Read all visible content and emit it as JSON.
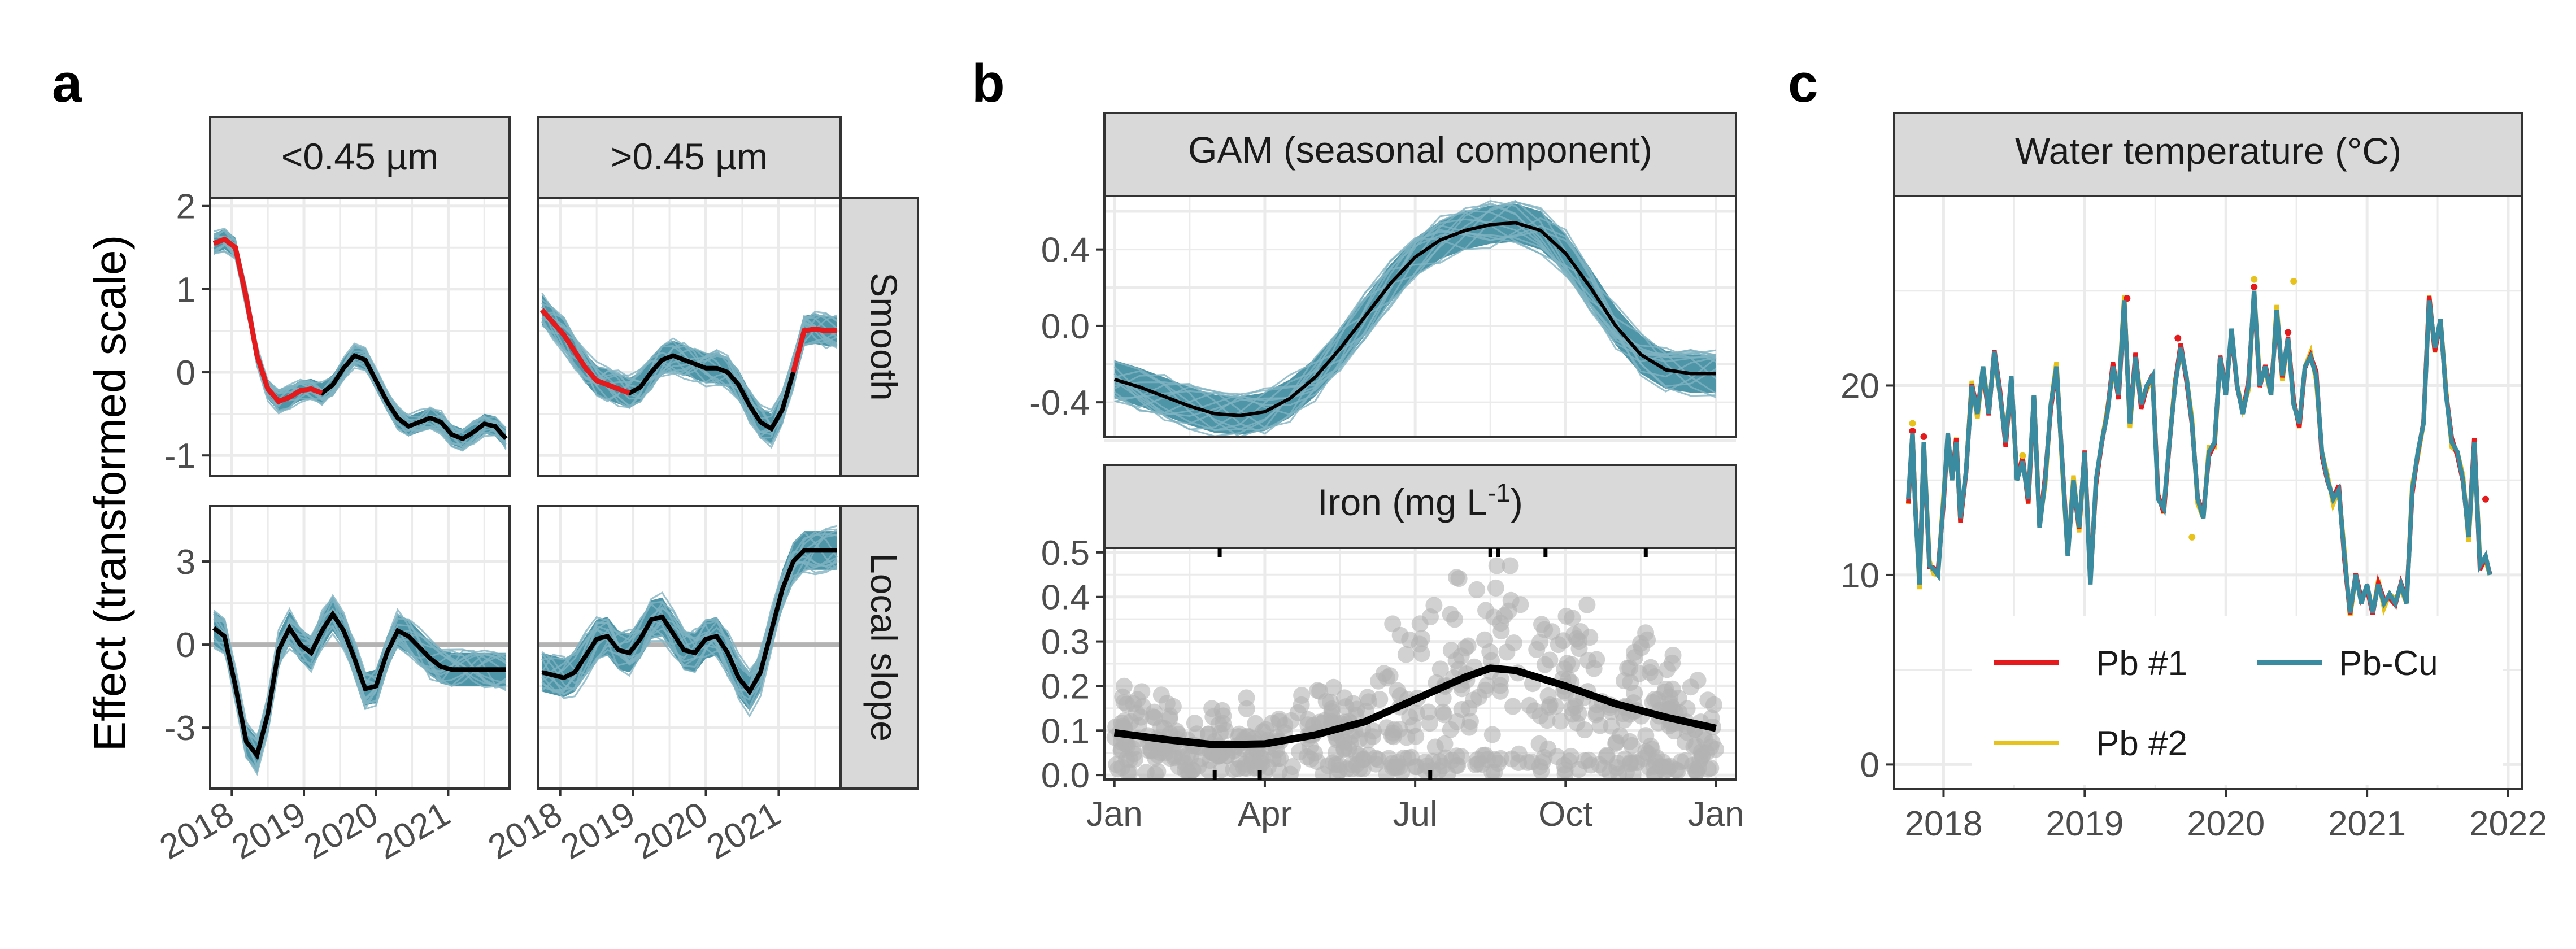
{
  "panels": {
    "a": "a",
    "b": "b",
    "c": "c"
  },
  "colors": {
    "band": "#4E95A8",
    "draw": "#7FB3C2",
    "smooth": "#E41A1C",
    "mean": "#000000",
    "points": "#B3B3B3",
    "pb1": "#E41A1C",
    "pb2": "#E7C21C",
    "pbcu": "#3A8BA0",
    "zero": "#B3B3B3"
  },
  "chart_data": [
    {
      "id": "a",
      "type": "line",
      "ylabel": "Effect (transformed scale)",
      "columns": [
        "<0.45 µm",
        ">0.45 µm"
      ],
      "rows": [
        "Smooth",
        "Local slope"
      ],
      "x_ticks": [
        2018,
        2019,
        2020,
        2021
      ],
      "xlim": [
        2017.7,
        2021.85
      ],
      "row_ylims": [
        [
          -1.25,
          2.1
        ],
        [
          -5.2,
          5.0
        ]
      ],
      "row_yticks": [
        [
          -1,
          0,
          1,
          2
        ],
        [
          -3,
          0,
          3
        ]
      ],
      "hline_row": 1,
      "x": [
        2017.75,
        2017.9,
        2018.05,
        2018.2,
        2018.35,
        2018.5,
        2018.65,
        2018.8,
        2018.95,
        2019.1,
        2019.25,
        2019.4,
        2019.55,
        2019.7,
        2019.85,
        2020.0,
        2020.15,
        2020.3,
        2020.45,
        2020.6,
        2020.75,
        2020.9,
        2021.05,
        2021.2,
        2021.35,
        2021.5,
        2021.65,
        2021.8
      ],
      "series": [
        {
          "column": "<0.45 µm",
          "row": "Smooth",
          "values": [
            1.55,
            1.6,
            1.5,
            0.9,
            0.2,
            -0.2,
            -0.35,
            -0.3,
            -0.22,
            -0.2,
            -0.25,
            -0.15,
            0.05,
            0.2,
            0.15,
            -0.1,
            -0.35,
            -0.55,
            -0.65,
            -0.6,
            -0.55,
            -0.6,
            -0.75,
            -0.8,
            -0.72,
            -0.62,
            -0.65,
            -0.8
          ],
          "red_until": 2019.3,
          "band_width": 0.12
        },
        {
          "column": ">0.45 µm",
          "row": "Smooth",
          "values": [
            0.75,
            0.6,
            0.45,
            0.25,
            0.05,
            -0.1,
            -0.15,
            -0.2,
            -0.25,
            -0.18,
            0.0,
            0.15,
            0.2,
            0.15,
            0.1,
            0.05,
            0.05,
            0.0,
            -0.15,
            -0.4,
            -0.6,
            -0.68,
            -0.45,
            0.0,
            0.5,
            0.52,
            0.5,
            0.5
          ],
          "red_until": 2019.0,
          "red_from": 2021.2,
          "band_width": 0.18
        },
        {
          "column": "<0.45 µm",
          "row": "Local slope",
          "values": [
            0.6,
            0.3,
            -1.5,
            -3.5,
            -4.0,
            -2.5,
            -0.2,
            0.6,
            0.0,
            -0.3,
            0.5,
            1.1,
            0.5,
            -0.5,
            -1.6,
            -1.5,
            -0.3,
            0.5,
            0.3,
            -0.1,
            -0.5,
            -0.8,
            -0.9,
            -0.9,
            -0.9,
            -0.9,
            -0.9,
            -0.9
          ],
          "band_width": 0.6
        },
        {
          "column": ">0.45 µm",
          "row": "Local slope",
          "values": [
            -1.0,
            -1.1,
            -1.2,
            -1.0,
            -0.4,
            0.2,
            0.3,
            -0.2,
            -0.3,
            0.2,
            0.9,
            1.0,
            0.4,
            -0.2,
            -0.3,
            0.2,
            0.3,
            -0.3,
            -1.2,
            -1.7,
            -1.0,
            0.5,
            2.0,
            3.0,
            3.4,
            3.4,
            3.4,
            3.4
          ],
          "band_width": 0.7
        }
      ]
    },
    {
      "id": "b_top",
      "type": "line",
      "title": "GAM (seasonal component)",
      "yticks": [
        -0.4,
        0.0,
        0.4
      ],
      "ytick_labels": [
        "-0.4",
        "0.0",
        "0.4"
      ],
      "ylim": [
        -0.58,
        0.68
      ],
      "xlim": [
        -0.2,
        12.4
      ],
      "x": [
        0,
        0.5,
        1,
        1.5,
        2,
        2.5,
        3,
        3.5,
        4,
        4.5,
        5,
        5.5,
        6,
        6.5,
        7,
        7.5,
        8,
        8.5,
        9,
        9.5,
        10,
        10.5,
        11,
        11.5,
        12
      ],
      "values": [
        -0.28,
        -0.32,
        -0.37,
        -0.42,
        -0.46,
        -0.47,
        -0.45,
        -0.38,
        -0.27,
        -0.12,
        0.05,
        0.22,
        0.36,
        0.45,
        0.5,
        0.53,
        0.54,
        0.5,
        0.38,
        0.2,
        0.0,
        -0.15,
        -0.23,
        -0.25,
        -0.25
      ],
      "band_width": 0.1
    },
    {
      "id": "b_bottom",
      "type": "scatter",
      "title": "Iron (mg L",
      "title_sup": "-1",
      "title_end": ")",
      "xticks": [
        0,
        3,
        6,
        9,
        12
      ],
      "xtick_labels": [
        "Jan",
        "Apr",
        "Jul",
        "Oct",
        "Jan"
      ],
      "yticks": [
        0.0,
        0.1,
        0.2,
        0.3,
        0.4,
        0.5
      ],
      "ytick_labels": [
        "0.0",
        "0.1",
        "0.2",
        "0.3",
        "0.4",
        "0.5"
      ],
      "ylim": [
        -0.01,
        0.51
      ],
      "xlim": [
        -0.2,
        12.4
      ],
      "rug": [
        2.1,
        7.5,
        7.65,
        8.6,
        10.6
      ],
      "trend_x": [
        0,
        1,
        2,
        3,
        4,
        5,
        6,
        7,
        7.5,
        8,
        9,
        10,
        11,
        12
      ],
      "trend_y": [
        0.095,
        0.08,
        0.068,
        0.07,
        0.09,
        0.12,
        0.17,
        0.22,
        0.24,
        0.235,
        0.2,
        0.16,
        0.13,
        0.105
      ],
      "point_count": 600
    },
    {
      "id": "c",
      "type": "line",
      "title": "Water temperature (°C)",
      "xticks": [
        2018,
        2019,
        2020,
        2021,
        2022
      ],
      "yticks": [
        0,
        10,
        20
      ],
      "xlim": [
        2017.65,
        2022.1
      ],
      "ylim": [
        -1.3,
        30.0
      ],
      "legend": [
        "Pb #1",
        "Pb #2",
        "Pb-Cu"
      ],
      "legend_position": "bottom-center",
      "x": [
        2017.75,
        2017.78,
        2017.8,
        2017.83,
        2017.86,
        2017.9,
        2017.93,
        2017.96,
        2018.0,
        2018.03,
        2018.06,
        2018.09,
        2018.12,
        2018.16,
        2018.2,
        2018.24,
        2018.28,
        2018.32,
        2018.36,
        2018.4,
        2018.44,
        2018.48,
        2018.52,
        2018.56,
        2018.6,
        2018.64,
        2018.68,
        2018.72,
        2018.76,
        2018.8,
        2018.84,
        2018.88,
        2018.92,
        2018.96,
        2019.0,
        2019.04,
        2019.08,
        2019.12,
        2019.16,
        2019.2,
        2019.24,
        2019.28,
        2019.32,
        2019.36,
        2019.4,
        2019.44,
        2019.48,
        2019.52,
        2019.56,
        2019.6,
        2019.64,
        2019.68,
        2019.72,
        2019.76,
        2019.8,
        2019.84,
        2019.88,
        2019.92,
        2019.96,
        2020.0,
        2020.04,
        2020.08,
        2020.12,
        2020.16,
        2020.2,
        2020.24,
        2020.28,
        2020.32,
        2020.36,
        2020.4,
        2020.44,
        2020.48,
        2020.52,
        2020.56,
        2020.6,
        2020.64,
        2020.68,
        2020.72,
        2020.76,
        2020.8,
        2020.84,
        2020.88,
        2020.92,
        2020.96,
        2021.0,
        2021.04,
        2021.08,
        2021.12,
        2021.16,
        2021.2,
        2021.24,
        2021.28,
        2021.32,
        2021.36,
        2021.4,
        2021.44,
        2021.48,
        2021.52,
        2021.56,
        2021.6,
        2021.64,
        2021.68,
        2021.72,
        2021.76,
        2021.8,
        2021.84,
        2021.87
      ],
      "pbcu": [
        14.0,
        17.5,
        13.5,
        9.5,
        17.0,
        10.5,
        10.3,
        10.0,
        14.0,
        17.5,
        15.0,
        17.0,
        13.0,
        15.5,
        20.0,
        18.5,
        21.0,
        18.5,
        21.8,
        19.5,
        17.0,
        20.5,
        15.0,
        16.0,
        14.0,
        19.5,
        12.5,
        15.0,
        19.0,
        21.0,
        16.0,
        11.0,
        15.0,
        12.5,
        16.5,
        9.5,
        15.0,
        17.0,
        18.5,
        21.0,
        19.5,
        24.5,
        18.0,
        21.5,
        19.0,
        20.0,
        20.5,
        14.0,
        13.5,
        17.0,
        20.0,
        22.0,
        20.5,
        18.0,
        14.0,
        13.0,
        16.5,
        17.0,
        21.5,
        19.5,
        23.0,
        20.0,
        18.5,
        20.0,
        25.0,
        20.0,
        21.0,
        19.5,
        24.0,
        20.5,
        22.5,
        19.0,
        18.0,
        21.0,
        21.5,
        20.5,
        16.5,
        15.0,
        14.0,
        14.5,
        11.0,
        8.0,
        10.0,
        8.5,
        9.5,
        8.0,
        9.5,
        8.5,
        9.0,
        8.5,
        9.5,
        8.5,
        14.5,
        16.5,
        18.0,
        24.5,
        22.0,
        23.5,
        19.5,
        17.0,
        16.5,
        15.0,
        12.0,
        17.0,
        10.5,
        11.0,
        10.0
      ],
      "pb1_spikes": [
        [
          2017.78,
          17.6
        ],
        [
          2017.86,
          17.3
        ],
        [
          2019.3,
          24.6
        ],
        [
          2019.66,
          22.5
        ],
        [
          2020.2,
          25.2
        ],
        [
          2020.44,
          22.8
        ],
        [
          2021.84,
          14.0
        ]
      ],
      "pb2_spikes": [
        [
          2017.78,
          18.0
        ],
        [
          2018.56,
          16.3
        ],
        [
          2019.76,
          12.0
        ],
        [
          2020.2,
          25.6
        ],
        [
          2020.48,
          25.5
        ]
      ]
    }
  ]
}
